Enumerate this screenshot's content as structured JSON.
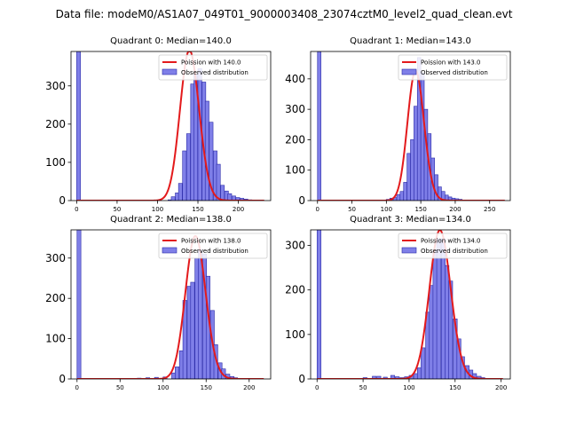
{
  "suptitle": "Data file: modeM0/AS1A07_049T01_9000003408_23074cztM0_level2_quad_clean.evt",
  "colors": {
    "bar_fill": "#7f7fe8",
    "bar_edge": "#2a2aa8",
    "poisson_line": "#e31a1c",
    "axes": "#000000"
  },
  "legend_labels": {
    "observed": "Observed distribution"
  },
  "chart_data": [
    {
      "type": "bar",
      "title": "Quadrant 0: Median=140.0",
      "median": 140.0,
      "poisson_label": "Poission with 140.0",
      "bin_width": 4.7,
      "xlim": [
        -7,
        240
      ],
      "ylim": [
        0,
        390
      ],
      "xticks": [
        0,
        50,
        100,
        150,
        200
      ],
      "yticks": [
        0,
        100,
        200,
        300
      ],
      "bins": [
        [
          0,
          390
        ],
        [
          60,
          1
        ],
        [
          80,
          1
        ],
        [
          100,
          1
        ],
        [
          113,
          2
        ],
        [
          117,
          10
        ],
        [
          122,
          20
        ],
        [
          126,
          45
        ],
        [
          131,
          130
        ],
        [
          136,
          175
        ],
        [
          141,
          305
        ],
        [
          145,
          330
        ],
        [
          150,
          345
        ],
        [
          155,
          310
        ],
        [
          159,
          260
        ],
        [
          164,
          205
        ],
        [
          169,
          130
        ],
        [
          173,
          95
        ],
        [
          178,
          40
        ],
        [
          183,
          25
        ],
        [
          187,
          18
        ],
        [
          192,
          12
        ],
        [
          197,
          8
        ],
        [
          202,
          6
        ],
        [
          207,
          4
        ],
        [
          212,
          2
        ],
        [
          220,
          1
        ]
      ]
    },
    {
      "type": "bar",
      "title": "Quadrant 1: Median=143.0",
      "median": 143.0,
      "poisson_label": "Poission with 143.0",
      "bin_width": 5.0,
      "xlim": [
        -10,
        280
      ],
      "ylim": [
        0,
        490
      ],
      "xticks": [
        0,
        50,
        100,
        150,
        200,
        250
      ],
      "yticks": [
        0,
        100,
        200,
        300,
        400
      ],
      "bins": [
        [
          0,
          490
        ],
        [
          90,
          2
        ],
        [
          100,
          4
        ],
        [
          105,
          8
        ],
        [
          110,
          10
        ],
        [
          115,
          20
        ],
        [
          120,
          30
        ],
        [
          125,
          60
        ],
        [
          130,
          155
        ],
        [
          135,
          200
        ],
        [
          140,
          310
        ],
        [
          145,
          470
        ],
        [
          150,
          420
        ],
        [
          155,
          300
        ],
        [
          160,
          220
        ],
        [
          165,
          140
        ],
        [
          170,
          85
        ],
        [
          175,
          45
        ],
        [
          180,
          30
        ],
        [
          185,
          18
        ],
        [
          190,
          12
        ],
        [
          195,
          8
        ],
        [
          200,
          6
        ],
        [
          205,
          4
        ],
        [
          210,
          2
        ]
      ]
    },
    {
      "type": "bar",
      "title": "Quadrant 2: Median=138.0",
      "median": 138.0,
      "poisson_label": "Poission with 138.0",
      "bin_width": 4.5,
      "xlim": [
        -7,
        225
      ],
      "ylim": [
        0,
        370
      ],
      "xticks": [
        0,
        50,
        100,
        150,
        200
      ],
      "yticks": [
        0,
        100,
        200,
        300
      ],
      "bins": [
        [
          0,
          370
        ],
        [
          70,
          2
        ],
        [
          80,
          3
        ],
        [
          90,
          4
        ],
        [
          100,
          5
        ],
        [
          110,
          15
        ],
        [
          114,
          30
        ],
        [
          119,
          70
        ],
        [
          123,
          195
        ],
        [
          128,
          230
        ],
        [
          132,
          240
        ],
        [
          137,
          300
        ],
        [
          141,
          320
        ],
        [
          146,
          310
        ],
        [
          150,
          255
        ],
        [
          155,
          170
        ],
        [
          159,
          85
        ],
        [
          164,
          40
        ],
        [
          168,
          25
        ],
        [
          173,
          12
        ],
        [
          178,
          6
        ],
        [
          182,
          3
        ],
        [
          190,
          1
        ]
      ]
    },
    {
      "type": "bar",
      "title": "Quadrant 3: Median=134.0",
      "median": 134.0,
      "poisson_label": "Poission with 134.0",
      "bin_width": 4.3,
      "xlim": [
        -7,
        210
      ],
      "ylim": [
        0,
        335
      ],
      "xticks": [
        0,
        50,
        100,
        150,
        200
      ],
      "yticks": [
        0,
        100,
        200,
        300
      ],
      "bins": [
        [
          0,
          335
        ],
        [
          50,
          3
        ],
        [
          60,
          6
        ],
        [
          65,
          6
        ],
        [
          72,
          4
        ],
        [
          80,
          8
        ],
        [
          85,
          5
        ],
        [
          90,
          3
        ],
        [
          95,
          5
        ],
        [
          100,
          8
        ],
        [
          105,
          12
        ],
        [
          109,
          25
        ],
        [
          113,
          70
        ],
        [
          118,
          150
        ],
        [
          122,
          210
        ],
        [
          126,
          290
        ],
        [
          130,
          315
        ],
        [
          135,
          315
        ],
        [
          139,
          255
        ],
        [
          143,
          220
        ],
        [
          148,
          135
        ],
        [
          152,
          90
        ],
        [
          156,
          50
        ],
        [
          161,
          30
        ],
        [
          165,
          20
        ],
        [
          169,
          12
        ],
        [
          174,
          6
        ],
        [
          178,
          3
        ],
        [
          185,
          1
        ]
      ]
    }
  ]
}
